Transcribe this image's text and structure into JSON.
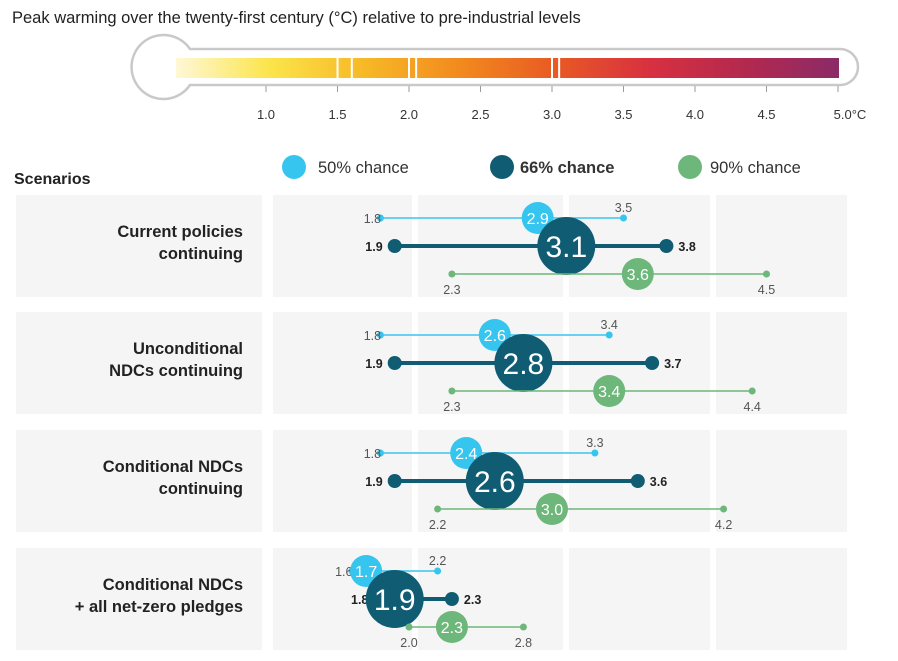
{
  "title": "Peak warming over the twenty-first century (°C) relative to pre-industrial levels",
  "scenarios_label": "Scenarios",
  "legend": [
    {
      "label": "50% chance",
      "color": "#36c5ef",
      "bold": false
    },
    {
      "label": "66% chance",
      "color": "#0f5c73",
      "bold": true
    },
    {
      "label": "90% chance",
      "color": "#6db77a",
      "bold": false
    }
  ],
  "thermometer": {
    "ticks": [
      "1.0",
      "1.5",
      "2.0",
      "2.5",
      "3.0",
      "3.5",
      "4.0",
      "4.5",
      "5.0°C"
    ],
    "gradient": [
      "#fff8d6",
      "#fbe44a",
      "#f7b826",
      "#f28a1e",
      "#e85a24",
      "#d83040",
      "#b3294e",
      "#8b2a67"
    ]
  },
  "chart_data": {
    "type": "range-dot",
    "title": "Peak warming over the twenty-first century (°C) relative to pre-industrial levels",
    "xlim": [
      1.0,
      5.0
    ],
    "xticks": [
      1.0,
      1.5,
      2.0,
      2.5,
      3.0,
      3.5,
      4.0,
      4.5,
      5.0
    ],
    "series_names": [
      "50% chance",
      "66% chance",
      "90% chance"
    ],
    "scenarios": [
      {
        "name": "Current policies continuing",
        "lines": [
          "Current policies",
          "continuing"
        ],
        "ranges": [
          {
            "series": "50% chance",
            "low": 1.8,
            "central": 2.9,
            "high": 3.5
          },
          {
            "series": "66% chance",
            "low": 1.9,
            "central": 3.1,
            "high": 3.8
          },
          {
            "series": "90% chance",
            "low": 2.3,
            "central": 3.6,
            "high": 4.5
          }
        ]
      },
      {
        "name": "Unconditional NDCs continuing",
        "lines": [
          "Unconditional",
          "NDCs continuing"
        ],
        "ranges": [
          {
            "series": "50% chance",
            "low": 1.8,
            "central": 2.6,
            "high": 3.4
          },
          {
            "series": "66% chance",
            "low": 1.9,
            "central": 2.8,
            "high": 3.7
          },
          {
            "series": "90% chance",
            "low": 2.3,
            "central": 3.4,
            "high": 4.4
          }
        ]
      },
      {
        "name": "Conditional NDCs continuing",
        "lines": [
          "Conditional NDCs",
          "continuing"
        ],
        "ranges": [
          {
            "series": "50% chance",
            "low": 1.8,
            "central": 2.4,
            "high": 3.3
          },
          {
            "series": "66% chance",
            "low": 1.9,
            "central": 2.6,
            "high": 3.6
          },
          {
            "series": "90% chance",
            "low": 2.2,
            "central": 3.0,
            "high": 4.2
          }
        ]
      },
      {
        "name": "Conditional NDCs + all net-zero pledges",
        "lines": [
          "Conditional NDCs",
          "+ all net-zero pledges"
        ],
        "ranges": [
          {
            "series": "50% chance",
            "low": 1.6,
            "central": 1.7,
            "high": 2.2
          },
          {
            "series": "66% chance",
            "low": 1.8,
            "central": 1.9,
            "high": 2.3
          },
          {
            "series": "90% chance",
            "low": 2.0,
            "central": 2.3,
            "high": 2.8
          }
        ]
      }
    ]
  }
}
